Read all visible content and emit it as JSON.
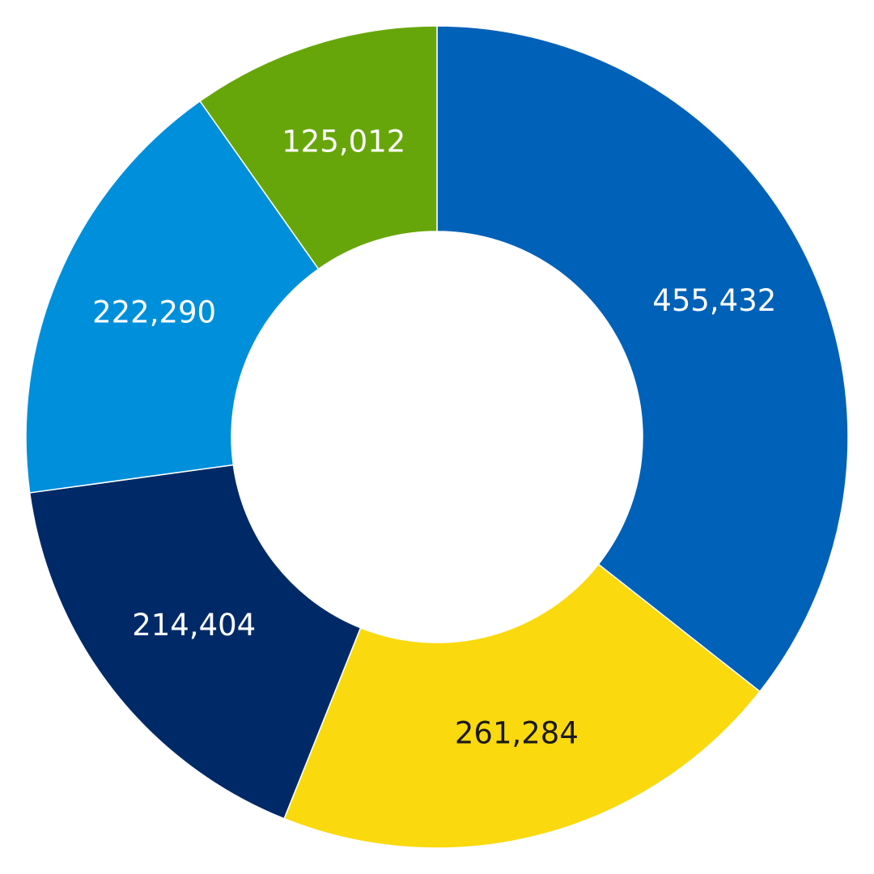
{
  "chart_data": {
    "type": "pie",
    "variant": "donut",
    "title": "",
    "slices": [
      {
        "value": 455432,
        "label": "455,432",
        "color": "#0061B8",
        "label_color": "#ffffff"
      },
      {
        "value": 261284,
        "label": "261,284",
        "color": "#FAD90E",
        "label_color": "#1a1a1a"
      },
      {
        "value": 214404,
        "label": "214,404",
        "color": "#002A67",
        "label_color": "#ffffff"
      },
      {
        "value": 222290,
        "label": "222,290",
        "color": "#008FDB",
        "label_color": "#ffffff"
      },
      {
        "value": 125012,
        "label": "125,012",
        "color": "#67A60A",
        "label_color": "#ffffff"
      }
    ],
    "start": "12 o'clock",
    "direction": "clockwise",
    "legend": "none"
  }
}
